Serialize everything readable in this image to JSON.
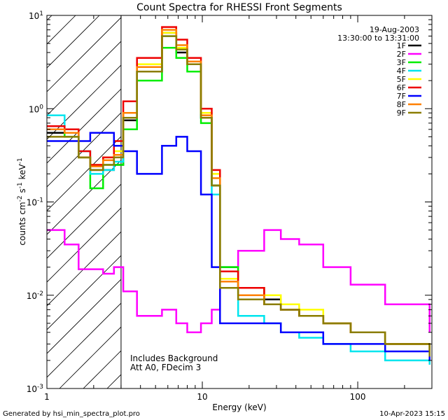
{
  "chart_data": {
    "type": "line",
    "title": "Count Spectra for RHESSI Front Segments",
    "xlabel": "Energy (keV)",
    "ylabel_parts": [
      "counts cm",
      "-2",
      " s",
      "-1",
      " keV",
      "-1"
    ],
    "x_scale": "log",
    "y_scale": "log",
    "xlim": [
      1,
      300
    ],
    "ylim": [
      0.001,
      10
    ],
    "x_tick_labels": [
      {
        "value": 1,
        "label": "1"
      },
      {
        "value": 10,
        "label": "10"
      },
      {
        "value": 100,
        "label": "100"
      }
    ],
    "y_tick_labels": [
      {
        "value": 10,
        "base": "10",
        "exp": "1"
      },
      {
        "value": 1,
        "base": "10",
        "exp": "0"
      },
      {
        "value": 0.1,
        "base": "10",
        "exp": "-1"
      },
      {
        "value": 0.01,
        "base": "10",
        "exp": "-2"
      },
      {
        "value": 0.001,
        "base": "10",
        "exp": "-3"
      }
    ],
    "date": "19-Aug-2003",
    "time_range": "13:30:00 to 13:31:00",
    "hatched_region_max_energy": 3,
    "annotations": [
      "Includes Background",
      "Att A0, FDecim 3"
    ],
    "footer_left": "Generated by hsi_min_spectra_plot.pro",
    "footer_right": "10-Apr-2023 15:15",
    "series": [
      {
        "name": "1F",
        "color": "#000000",
        "values": [
          0.55,
          0.55,
          0.3,
          0.22,
          0.22,
          0.25,
          0.75,
          2.5,
          6.5,
          4.0,
          3.0,
          0.8,
          0.15,
          0.02,
          0.012,
          0.009,
          0.007,
          0.006,
          0.005,
          0.004,
          0.003,
          0.0025
        ]
      },
      {
        "name": "2F",
        "color": "#ff00ff",
        "values": [
          0.05,
          0.035,
          0.019,
          0.019,
          0.017,
          0.02,
          0.011,
          0.006,
          0.007,
          0.005,
          0.004,
          0.005,
          0.007,
          0.012,
          0.03,
          0.05,
          0.04,
          0.035,
          0.02,
          0.013,
          0.008,
          0.004
        ]
      },
      {
        "name": "3F",
        "color": "#00ee00",
        "values": [
          0.6,
          0.5,
          0.3,
          0.14,
          0.25,
          0.25,
          0.6,
          2.0,
          4.5,
          3.5,
          2.5,
          0.7,
          0.15,
          0.02,
          0.01,
          0.008,
          0.007,
          0.006,
          0.005,
          0.004,
          0.003,
          0.0025
        ]
      },
      {
        "name": "4F",
        "color": "#00e5ee",
        "values": [
          0.85,
          0.6,
          0.35,
          0.2,
          0.22,
          0.27,
          0.8,
          2.5,
          6.0,
          4.5,
          3.0,
          0.8,
          0.12,
          0.015,
          0.006,
          0.005,
          0.004,
          0.0035,
          0.003,
          0.0025,
          0.002,
          0.0018
        ]
      },
      {
        "name": "5F",
        "color": "#ffff00",
        "values": [
          0.6,
          0.55,
          0.3,
          0.25,
          0.3,
          0.35,
          0.9,
          3.0,
          6.5,
          4.5,
          3.0,
          0.9,
          0.2,
          0.015,
          0.012,
          0.01,
          0.008,
          0.007,
          0.005,
          0.004,
          0.003,
          0.0025
        ]
      },
      {
        "name": "6F",
        "color": "#ee0000",
        "values": [
          0.65,
          0.6,
          0.35,
          0.25,
          0.3,
          0.45,
          1.2,
          3.5,
          7.5,
          5.5,
          3.5,
          1.0,
          0.22,
          0.018,
          0.012,
          0.008,
          0.007,
          0.006,
          0.005,
          0.004,
          0.003,
          0.0025
        ]
      },
      {
        "name": "7F",
        "color": "#0000ff",
        "values": [
          0.45,
          0.45,
          0.45,
          0.55,
          0.55,
          0.4,
          0.35,
          0.2,
          0.4,
          0.5,
          0.35,
          0.12,
          0.02,
          0.005,
          0.005,
          0.005,
          0.004,
          0.004,
          0.003,
          0.003,
          0.0025,
          0.002
        ]
      },
      {
        "name": "8F",
        "color": "#ff8000",
        "values": [
          0.6,
          0.55,
          0.3,
          0.24,
          0.28,
          0.32,
          0.9,
          2.8,
          7.0,
          4.8,
          3.2,
          0.85,
          0.18,
          0.014,
          0.01,
          0.008,
          0.007,
          0.006,
          0.005,
          0.004,
          0.003,
          0.0025
        ]
      },
      {
        "name": "9F",
        "color": "#8b7d00",
        "values": [
          0.5,
          0.5,
          0.3,
          0.22,
          0.25,
          0.3,
          0.8,
          2.5,
          6.0,
          4.3,
          3.0,
          0.8,
          0.15,
          0.012,
          0.009,
          0.008,
          0.007,
          0.006,
          0.005,
          0.004,
          0.003,
          0.0022
        ]
      }
    ],
    "x": [
      1.0,
      1.3,
      1.6,
      1.9,
      2.3,
      2.7,
      3.1,
      3.8,
      5.5,
      6.8,
      8.0,
      9.8,
      11.5,
      13.0,
      17.0,
      25.0,
      32.0,
      42.0,
      60.0,
      90.0,
      150.0,
      290.0
    ]
  }
}
